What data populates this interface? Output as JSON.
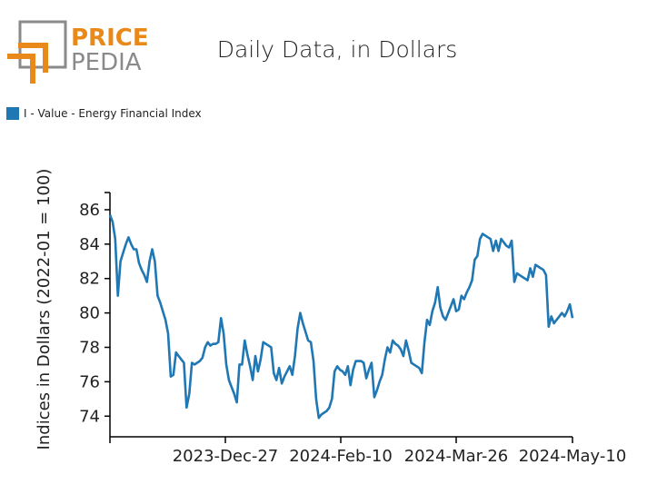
{
  "logo": {
    "line1": "PRICE",
    "line2": "PEDIA",
    "accent_color": "#e8891a",
    "gray_color": "#8a8a8a"
  },
  "title": "Daily Data, in Dollars",
  "legend": {
    "label": "I - Value - Energy Financial Index",
    "color": "#1f77b4"
  },
  "chart_data": {
    "type": "line",
    "title": "Daily Data, in Dollars",
    "ylabel": "Indices in Dollars (2022-01 = 100)",
    "xlabel": "",
    "ylim": [
      72.8,
      87
    ],
    "yticks": [
      74,
      76,
      78,
      80,
      82,
      84,
      86
    ],
    "xticks": [
      "2023-Dec-27",
      "2024-Feb-10",
      "2024-Mar-26",
      "2024-May-10"
    ],
    "x_start": "2023-Nov-12",
    "x_end": "2024-May-10",
    "series": [
      {
        "name": "I - Value - Energy Financial Index",
        "color": "#1f77b4",
        "values": [
          85.7,
          85.3,
          84.3,
          81.0,
          83.0,
          83.5,
          84.0,
          84.4,
          84.0,
          83.7,
          83.7,
          82.9,
          82.5,
          82.2,
          81.8,
          83.0,
          83.7,
          83.0,
          81.0,
          80.6,
          80.1,
          79.6,
          78.8,
          76.3,
          76.4,
          77.7,
          77.5,
          77.3,
          77.1,
          74.5,
          75.3,
          77.1,
          77.0,
          77.1,
          77.2,
          77.4,
          78.0,
          78.3,
          78.1,
          78.2,
          78.2,
          78.3,
          79.7,
          78.8,
          77.0,
          76.1,
          75.7,
          75.3,
          74.8,
          77.0,
          77.0,
          78.4,
          77.6,
          76.9,
          76.1,
          77.5,
          76.6,
          77.3,
          78.3,
          78.2,
          78.1,
          78.0,
          76.5,
          76.1,
          76.8,
          75.9,
          76.3,
          76.6,
          76.9,
          76.4,
          77.5,
          79.1,
          80.0,
          79.4,
          78.9,
          78.4,
          78.3,
          77.2,
          75.0,
          73.9,
          74.1,
          74.2,
          74.3,
          74.5,
          75.0,
          76.6,
          76.9,
          76.7,
          76.6,
          76.4,
          76.9,
          75.8,
          76.7,
          77.2,
          77.2,
          77.2,
          77.1,
          76.2,
          76.7,
          77.1,
          75.1,
          75.5,
          76.0,
          76.4,
          77.3,
          78.0,
          77.7,
          78.4,
          78.2,
          78.1,
          77.9,
          77.5,
          78.4,
          77.8,
          77.1,
          77.0,
          76.9,
          76.8,
          76.5,
          78.3,
          79.6,
          79.3,
          80.1,
          80.6,
          81.5,
          80.3,
          79.8,
          79.6,
          80.0,
          80.4,
          80.8,
          80.1,
          80.2,
          81.0,
          80.8,
          81.2,
          81.5,
          81.9,
          83.1,
          83.3,
          84.3,
          84.6,
          84.5,
          84.4,
          84.3,
          83.6,
          84.2,
          83.6,
          84.3,
          84.1,
          83.9,
          83.8,
          84.2,
          81.8,
          82.3,
          82.2,
          82.1,
          82.0,
          81.9,
          82.6,
          82.1,
          82.8,
          82.7,
          82.6,
          82.5,
          82.2,
          79.2,
          79.8,
          79.4,
          79.6,
          79.8,
          80.0,
          79.8,
          80.1,
          80.5,
          79.7
        ]
      }
    ]
  }
}
